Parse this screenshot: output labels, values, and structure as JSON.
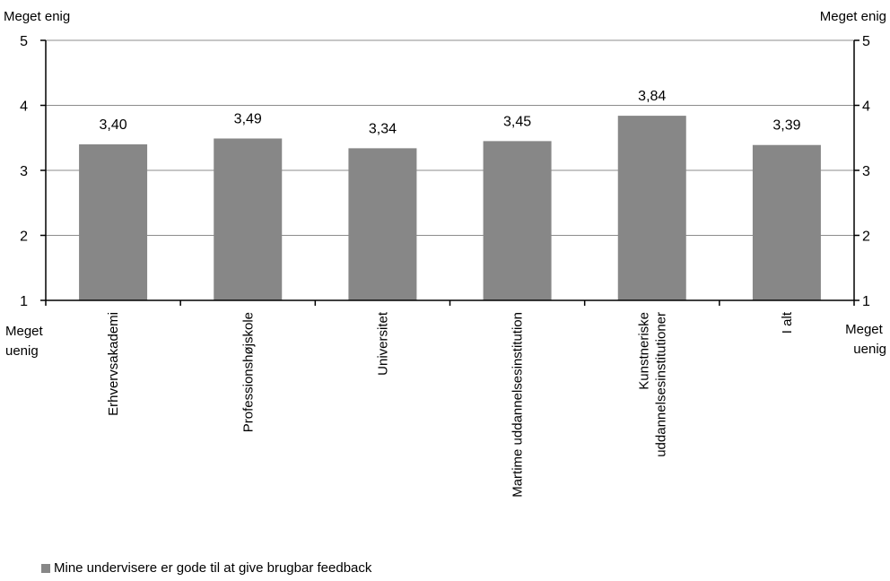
{
  "chart_data": {
    "type": "bar",
    "categories": [
      [
        "Erhvervsakademi"
      ],
      [
        "Professionshøjskole"
      ],
      [
        "Universitet"
      ],
      [
        "Martime uddannelsesinstitution"
      ],
      [
        "Kunstneriske",
        "uddannelsesinstitutioner"
      ],
      [
        "I alt"
      ]
    ],
    "series": [
      {
        "name": "Mine undervisere er gode til at give brugbar feedback",
        "values": [
          3.4,
          3.49,
          3.34,
          3.45,
          3.84,
          3.39
        ],
        "labels": [
          "3,40",
          "3,49",
          "3,34",
          "3,45",
          "3,84",
          "3,39"
        ],
        "color": "#878787"
      }
    ],
    "ylim": [
      1,
      5
    ],
    "yticks": [
      1,
      2,
      3,
      4,
      5
    ],
    "secondary_axis": true,
    "grid": true,
    "legend_position": "bottom-left",
    "axis_annotations": {
      "top_left": "Meget enig",
      "top_right": "Meget enig",
      "bottom_left": [
        "Meget",
        "uenig"
      ],
      "bottom_right": [
        "Meget",
        "uenig"
      ]
    }
  }
}
